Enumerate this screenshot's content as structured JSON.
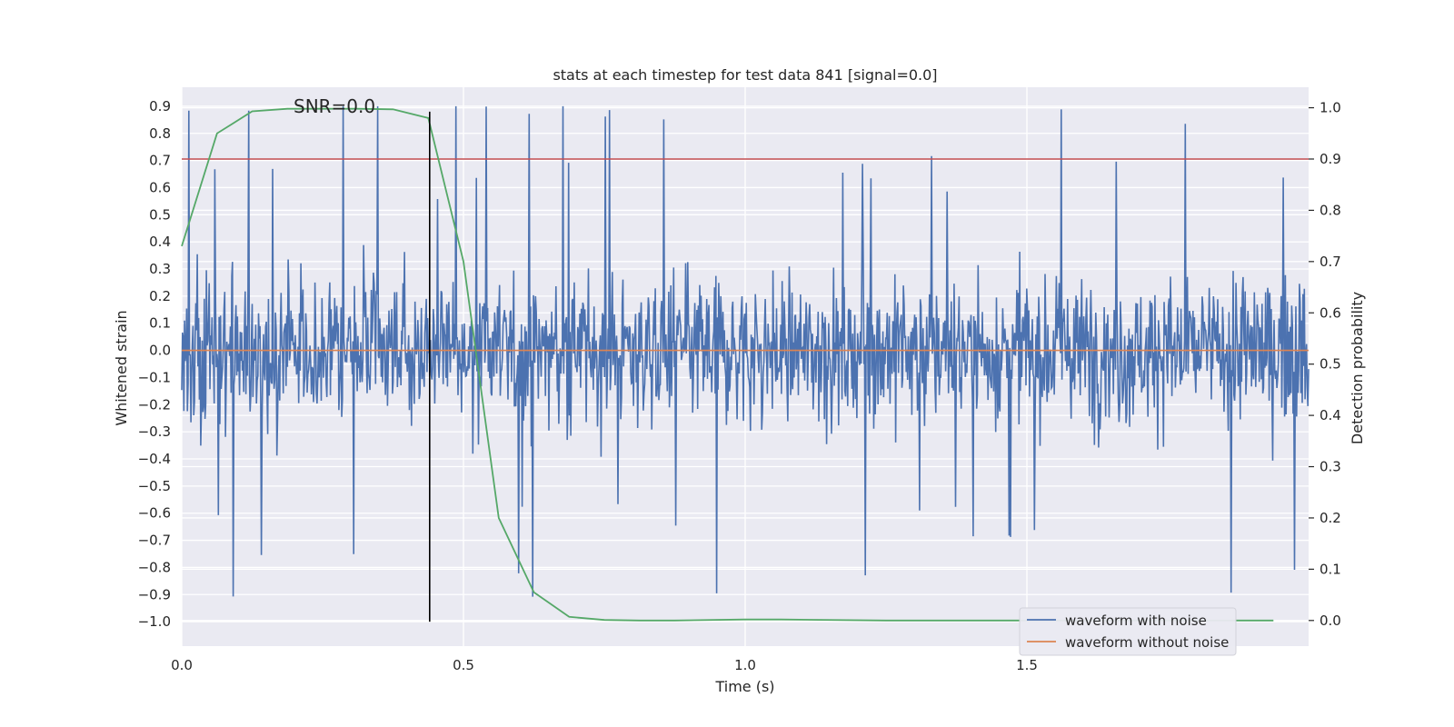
{
  "chart_data": {
    "type": "line",
    "title": "stats at each timestep for test data 841 [signal=0.0]",
    "xlabel": "Time (s)",
    "ylabel_left": "Whitened strain",
    "ylabel_right": "Detection probability",
    "annotation": "SNR=0.0",
    "xlim": [
      0.0,
      2.0
    ],
    "ylim_left": [
      -1.09,
      0.97
    ],
    "ylim_right": [
      -0.05,
      1.04
    ],
    "x_ticks": [
      0.0,
      0.5,
      1.0,
      1.5
    ],
    "x_tick_labels": [
      "0.0",
      "0.5",
      "1.0",
      "1.5"
    ],
    "y_left_ticks": [
      0.9,
      0.8,
      0.7,
      0.6,
      0.5,
      0.4,
      0.3,
      0.2,
      0.1,
      0.0,
      -0.1,
      -0.2,
      -0.3,
      -0.4,
      -0.5,
      -0.6,
      -0.7,
      -0.8,
      -0.9,
      -1.0
    ],
    "y_left_tick_labels": [
      "0.9",
      "0.8",
      "0.7",
      "0.6",
      "0.5",
      "0.4",
      "0.3",
      "0.2",
      "0.1",
      "0.0",
      "−0.1",
      "−0.2",
      "−0.3",
      "−0.4",
      "−0.5",
      "−0.6",
      "−0.7",
      "−0.8",
      "−0.9",
      "−1.0"
    ],
    "y_right_ticks": [
      1.0,
      0.9,
      0.8,
      0.7,
      0.6,
      0.5,
      0.4,
      0.3,
      0.2,
      0.1,
      0.0
    ],
    "y_right_tick_labels": [
      "1.0",
      "0.9",
      "0.8",
      "0.7",
      "0.6",
      "0.5",
      "0.4",
      "0.3",
      "0.2",
      "0.1",
      "0.0"
    ],
    "threshold": {
      "value": 0.9,
      "axis": "right",
      "color": "#c44e52"
    },
    "vertical_marker": {
      "x": 0.44,
      "y_range": [
        -1.0,
        0.88
      ],
      "color": "#000000"
    },
    "noisy_waveform": {
      "name": "waveform with noise",
      "color": "#4c72b0",
      "note": "dense noise, amplitude mostly within ±0.5 with spikes to ±0.9",
      "x_range": [
        0.0,
        2.0
      ],
      "n_points": 1600
    },
    "series": [
      {
        "name": "waveform with noise",
        "axis": "left",
        "color": "#4c72b0"
      },
      {
        "name": "waveform without noise",
        "axis": "left",
        "color": "#dd8452",
        "x": [
          0.0,
          2.0
        ],
        "values": [
          0.0,
          0.0
        ]
      },
      {
        "name": "detection probability",
        "axis": "right",
        "color": "#55a868",
        "x": [
          0.0,
          0.0625,
          0.125,
          0.1875,
          0.25,
          0.3125,
          0.375,
          0.4375,
          0.5,
          0.5625,
          0.625,
          0.6875,
          0.75,
          0.8125,
          0.875,
          1.0,
          1.0625,
          1.25,
          1.5,
          1.75,
          1.9375
        ],
        "values": [
          0.73,
          0.95,
          0.993,
          0.998,
          0.998,
          0.998,
          0.997,
          0.98,
          0.7,
          0.2,
          0.055,
          0.007,
          0.001,
          0.0,
          0.0,
          0.002,
          0.002,
          0.0,
          0.0,
          0.0,
          0.0
        ]
      }
    ],
    "legend": {
      "position": "lower-right",
      "entries": [
        {
          "label": "waveform with noise",
          "color": "#4c72b0"
        },
        {
          "label": "waveform without noise",
          "color": "#dd8452"
        }
      ]
    },
    "colors": {
      "plot_bg": "#eaeaf2",
      "grid": "#ffffff"
    }
  }
}
